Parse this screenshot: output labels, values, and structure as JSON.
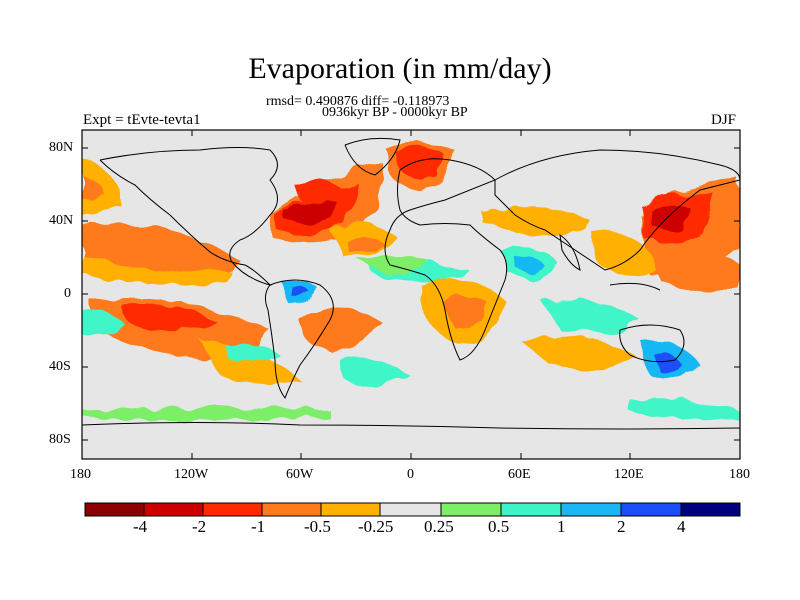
{
  "title": "Evaporation (in mm/day)",
  "stats_line": "rmsd= 0.490876 diff= -0.118973",
  "period_line": "0936kyr BP - 0000kyr BP",
  "experiment_label": "Expt = tEvte-tevta1",
  "season_label": "DJF",
  "map": {
    "projection": "cylindrical equidistant",
    "lon_range": [
      -180,
      180
    ],
    "lat_range": [
      -90,
      90
    ],
    "lon_tick_labels": [
      "180",
      "120W",
      "60W",
      "0",
      "60E",
      "120E",
      "180"
    ],
    "lat_tick_labels": [
      "80N",
      "40N",
      "0",
      "40S",
      "80S"
    ],
    "background_color": "#e6e6e6",
    "coastline_color": "#000000"
  },
  "colorbar": {
    "labels": [
      "-4",
      "-2",
      "-1",
      "-0.5",
      "-0.25",
      "0.25",
      "0.5",
      "1",
      "2",
      "4"
    ],
    "colors": [
      "#8b0000",
      "#cc0000",
      "#ff2a00",
      "#ff7a1a",
      "#ffb000",
      "#e6e6e6",
      "#7cee68",
      "#3ff5c8",
      "#19b7f5",
      "#1a4ff7",
      "#00007f"
    ]
  }
}
